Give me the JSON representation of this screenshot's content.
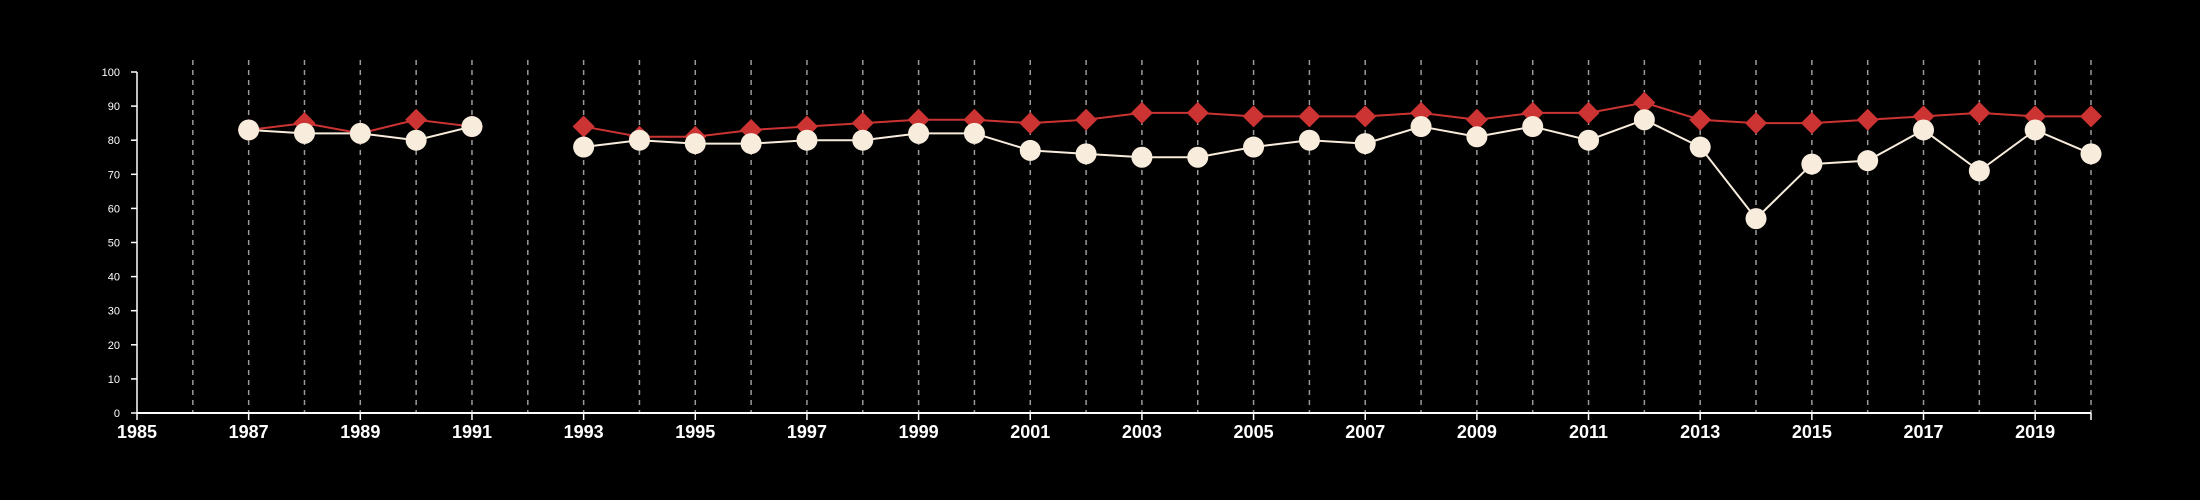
{
  "chart_data": {
    "type": "line",
    "title": "",
    "xlabel": "",
    "ylabel": "",
    "xlim": [
      1985,
      2020
    ],
    "ylim": [
      0,
      100
    ],
    "yticks": [
      0,
      10,
      20,
      30,
      40,
      50,
      60,
      70,
      80,
      90,
      100
    ],
    "xticks": [
      1985,
      1987,
      1989,
      1991,
      1993,
      1995,
      1997,
      1999,
      2001,
      2003,
      2005,
      2007,
      2009,
      2011,
      2013,
      2015,
      2017,
      2019
    ],
    "x_gridlines": [
      1986,
      1987,
      1988,
      1989,
      1990,
      1991,
      1992,
      1993,
      1994,
      1995,
      1996,
      1997,
      1998,
      1999,
      2000,
      2001,
      2002,
      2003,
      2004,
      2005,
      2006,
      2007,
      2008,
      2009,
      2010,
      2011,
      2012,
      2013,
      2014,
      2015,
      2016,
      2017,
      2018,
      2019,
      2020
    ],
    "grid": "vertical dashed",
    "legend": "none",
    "series": [
      {
        "color": "#cc3333",
        "marker": "diamond",
        "segments": [
          [
            [
              1987,
              83
            ],
            [
              1988,
              85
            ],
            [
              1989,
              82
            ],
            [
              1990,
              86
            ],
            [
              1991,
              84
            ]
          ],
          [
            [
              1993,
              84
            ],
            [
              1994,
              81
            ],
            [
              1995,
              81
            ],
            [
              1996,
              83
            ],
            [
              1997,
              84
            ],
            [
              1998,
              85
            ],
            [
              1999,
              86
            ],
            [
              2000,
              86
            ],
            [
              2001,
              85
            ],
            [
              2002,
              86
            ],
            [
              2003,
              88
            ],
            [
              2004,
              88
            ],
            [
              2005,
              87
            ],
            [
              2006,
              87
            ],
            [
              2007,
              87
            ],
            [
              2008,
              88
            ],
            [
              2009,
              86
            ],
            [
              2010,
              88
            ],
            [
              2011,
              88
            ],
            [
              2012,
              91
            ],
            [
              2013,
              86
            ],
            [
              2014,
              85
            ],
            [
              2015,
              85
            ],
            [
              2016,
              86
            ],
            [
              2017,
              87
            ],
            [
              2018,
              88
            ],
            [
              2019,
              87
            ],
            [
              2020,
              87
            ]
          ]
        ]
      },
      {
        "color": "#f8ecdc",
        "marker": "circle",
        "segments": [
          [
            [
              1987,
              83
            ],
            [
              1988,
              82
            ],
            [
              1989,
              82
            ],
            [
              1990,
              80
            ],
            [
              1991,
              84
            ]
          ],
          [
            [
              1993,
              78
            ],
            [
              1994,
              80
            ],
            [
              1995,
              79
            ],
            [
              1996,
              79
            ],
            [
              1997,
              80
            ],
            [
              1998,
              80
            ],
            [
              1999,
              82
            ],
            [
              2000,
              82
            ],
            [
              2001,
              77
            ],
            [
              2002,
              76
            ],
            [
              2003,
              75
            ],
            [
              2004,
              75
            ],
            [
              2005,
              78
            ],
            [
              2006,
              80
            ],
            [
              2007,
              79
            ],
            [
              2008,
              84
            ],
            [
              2009,
              81
            ],
            [
              2010,
              84
            ],
            [
              2011,
              80
            ],
            [
              2012,
              86
            ],
            [
              2013,
              78
            ],
            [
              2014,
              57
            ],
            [
              2015,
              73
            ],
            [
              2016,
              74
            ],
            [
              2017,
              83
            ],
            [
              2018,
              71
            ],
            [
              2019,
              83
            ],
            [
              2020,
              76
            ]
          ]
        ]
      }
    ],
    "colors": {
      "background": "#000000",
      "axis": "#ffffff",
      "grid": "#9a9a9a",
      "series_red": "#cc3333",
      "series_cream": "#f8ecdc"
    }
  }
}
